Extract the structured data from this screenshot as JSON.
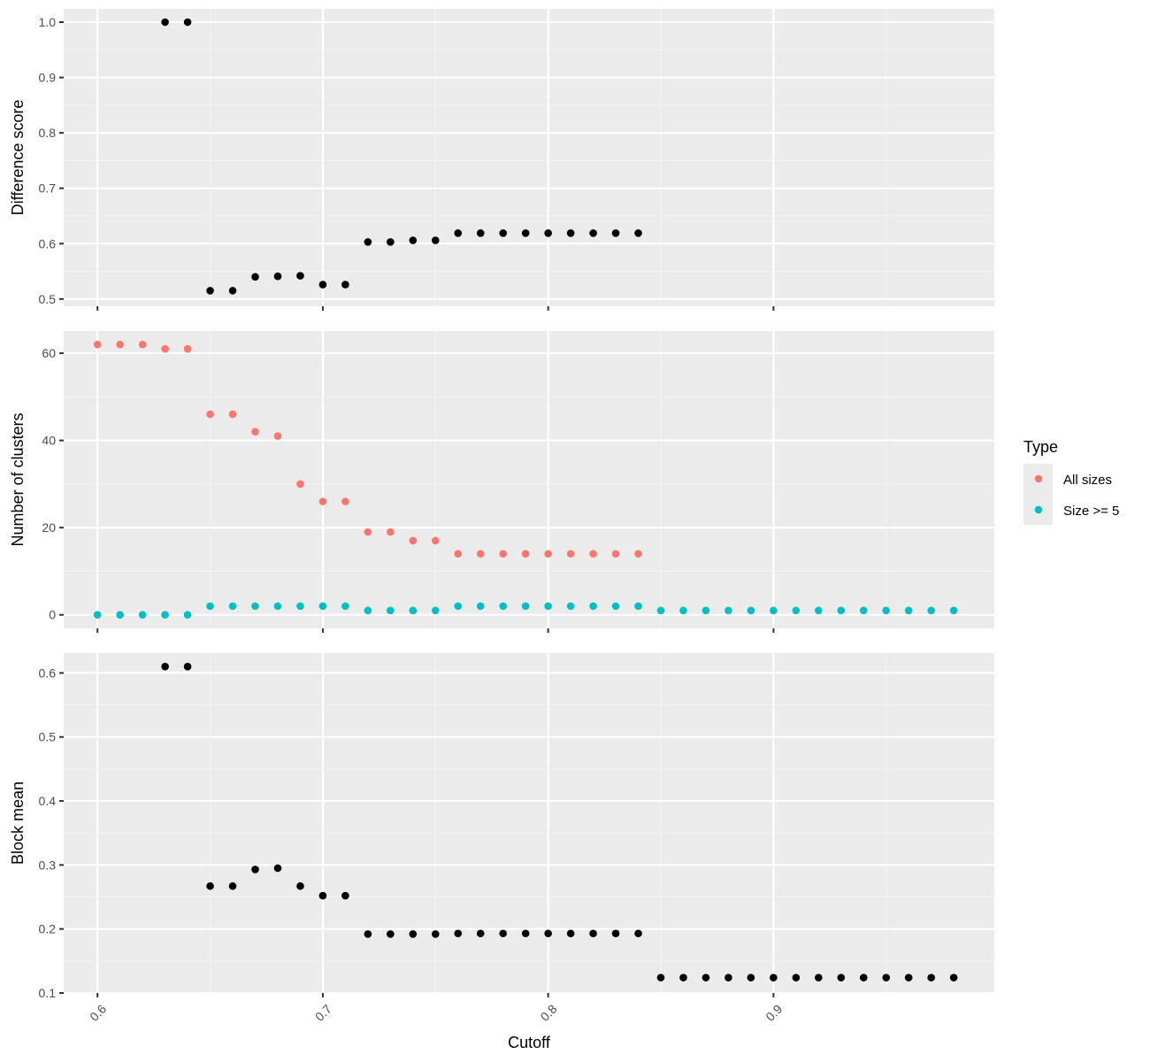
{
  "chart_data": {
    "type": "scatter",
    "xlabel": "Cutoff",
    "xlim": [
      0.585,
      0.998
    ],
    "x_ticks": [
      "0.6",
      "0.7",
      "0.8",
      "0.9"
    ],
    "x_tick_values": [
      0.6,
      0.7,
      0.8,
      0.9
    ],
    "grid": true,
    "legend": {
      "title": "Type",
      "placement": "right",
      "entries": [
        {
          "name": "All sizes",
          "color": "#F8766D"
        },
        {
          "name": "Size >= 5",
          "color": "#00BFC4"
        }
      ]
    },
    "panels": [
      {
        "ylabel": "Difference score",
        "ylim": [
          0.487,
          1.024
        ],
        "y_ticks": [
          "0.5",
          "0.6",
          "0.7",
          "0.8",
          "0.9",
          "1.0"
        ],
        "y_tick_values": [
          0.5,
          0.6,
          0.7,
          0.8,
          0.9,
          1.0
        ],
        "series": [
          {
            "color": "#000000",
            "points": [
              [
                0.63,
                1.0
              ],
              [
                0.64,
                1.0
              ],
              [
                0.65,
                0.515
              ],
              [
                0.66,
                0.515
              ],
              [
                0.67,
                0.54
              ],
              [
                0.68,
                0.541
              ],
              [
                0.69,
                0.542
              ],
              [
                0.7,
                0.526
              ],
              [
                0.71,
                0.526
              ],
              [
                0.72,
                0.603
              ],
              [
                0.73,
                0.603
              ],
              [
                0.74,
                0.606
              ],
              [
                0.75,
                0.606
              ],
              [
                0.76,
                0.619
              ],
              [
                0.77,
                0.619
              ],
              [
                0.78,
                0.619
              ],
              [
                0.79,
                0.619
              ],
              [
                0.8,
                0.619
              ],
              [
                0.81,
                0.619
              ],
              [
                0.82,
                0.619
              ],
              [
                0.83,
                0.619
              ],
              [
                0.84,
                0.619
              ]
            ]
          }
        ]
      },
      {
        "ylabel": "Number of clusters",
        "ylim": [
          -3.1,
          65.1
        ],
        "y_ticks": [
          "0",
          "20",
          "40",
          "60"
        ],
        "y_tick_values": [
          0,
          20,
          40,
          60
        ],
        "series": [
          {
            "name": "All sizes",
            "color": "#F8766D",
            "points": [
              [
                0.6,
                62
              ],
              [
                0.61,
                62
              ],
              [
                0.62,
                62
              ],
              [
                0.63,
                61
              ],
              [
                0.64,
                61
              ],
              [
                0.65,
                46
              ],
              [
                0.66,
                46
              ],
              [
                0.67,
                42
              ],
              [
                0.68,
                41
              ],
              [
                0.69,
                30
              ],
              [
                0.7,
                26
              ],
              [
                0.71,
                26
              ],
              [
                0.72,
                19
              ],
              [
                0.73,
                19
              ],
              [
                0.74,
                17
              ],
              [
                0.75,
                17
              ],
              [
                0.76,
                14
              ],
              [
                0.77,
                14
              ],
              [
                0.78,
                14
              ],
              [
                0.79,
                14
              ],
              [
                0.8,
                14
              ],
              [
                0.81,
                14
              ],
              [
                0.82,
                14
              ],
              [
                0.83,
                14
              ],
              [
                0.84,
                14
              ]
            ]
          },
          {
            "name": "Size >= 5",
            "color": "#00BFC4",
            "points": [
              [
                0.6,
                0
              ],
              [
                0.61,
                0
              ],
              [
                0.62,
                0
              ],
              [
                0.63,
                0
              ],
              [
                0.64,
                0
              ],
              [
                0.65,
                2
              ],
              [
                0.66,
                2
              ],
              [
                0.67,
                2
              ],
              [
                0.68,
                2
              ],
              [
                0.69,
                2
              ],
              [
                0.7,
                2
              ],
              [
                0.71,
                2
              ],
              [
                0.72,
                1
              ],
              [
                0.73,
                1
              ],
              [
                0.74,
                1
              ],
              [
                0.75,
                1
              ],
              [
                0.76,
                2
              ],
              [
                0.77,
                2
              ],
              [
                0.78,
                2
              ],
              [
                0.79,
                2
              ],
              [
                0.8,
                2
              ],
              [
                0.81,
                2
              ],
              [
                0.82,
                2
              ],
              [
                0.83,
                2
              ],
              [
                0.84,
                2
              ],
              [
                0.85,
                1
              ],
              [
                0.86,
                1
              ],
              [
                0.87,
                1
              ],
              [
                0.88,
                1
              ],
              [
                0.89,
                1
              ],
              [
                0.9,
                1
              ],
              [
                0.91,
                1
              ],
              [
                0.92,
                1
              ],
              [
                0.93,
                1
              ],
              [
                0.94,
                1
              ],
              [
                0.95,
                1
              ],
              [
                0.96,
                1
              ],
              [
                0.97,
                1
              ],
              [
                0.98,
                1
              ]
            ]
          }
        ]
      },
      {
        "ylabel": "Block mean",
        "ylim": [
          0.1,
          0.631
        ],
        "y_ticks": [
          "0.1",
          "0.2",
          "0.3",
          "0.4",
          "0.5",
          "0.6"
        ],
        "y_tick_values": [
          0.1,
          0.2,
          0.3,
          0.4,
          0.5,
          0.6
        ],
        "series": [
          {
            "color": "#000000",
            "points": [
              [
                0.63,
                0.61
              ],
              [
                0.64,
                0.61
              ],
              [
                0.65,
                0.267
              ],
              [
                0.66,
                0.267
              ],
              [
                0.67,
                0.293
              ],
              [
                0.68,
                0.295
              ],
              [
                0.69,
                0.267
              ],
              [
                0.7,
                0.252
              ],
              [
                0.71,
                0.252
              ],
              [
                0.72,
                0.192
              ],
              [
                0.73,
                0.192
              ],
              [
                0.74,
                0.192
              ],
              [
                0.75,
                0.192
              ],
              [
                0.76,
                0.193
              ],
              [
                0.77,
                0.193
              ],
              [
                0.78,
                0.193
              ],
              [
                0.79,
                0.193
              ],
              [
                0.8,
                0.193
              ],
              [
                0.81,
                0.193
              ],
              [
                0.82,
                0.193
              ],
              [
                0.83,
                0.193
              ],
              [
                0.84,
                0.193
              ],
              [
                0.85,
                0.124
              ],
              [
                0.86,
                0.124
              ],
              [
                0.87,
                0.124
              ],
              [
                0.88,
                0.124
              ],
              [
                0.89,
                0.124
              ],
              [
                0.9,
                0.124
              ],
              [
                0.91,
                0.124
              ],
              [
                0.92,
                0.124
              ],
              [
                0.93,
                0.124
              ],
              [
                0.94,
                0.124
              ],
              [
                0.95,
                0.124
              ],
              [
                0.96,
                0.124
              ],
              [
                0.97,
                0.124
              ],
              [
                0.98,
                0.124
              ]
            ]
          }
        ]
      }
    ]
  }
}
